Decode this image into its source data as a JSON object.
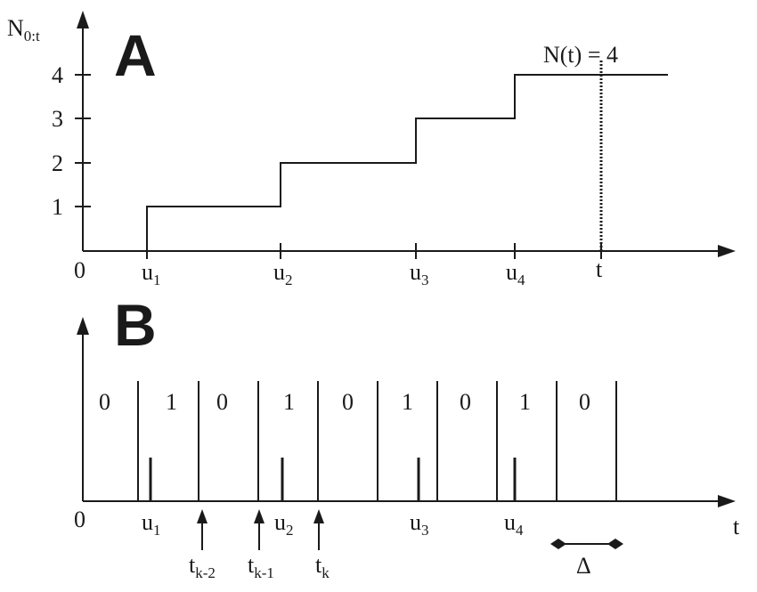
{
  "panel_a": {
    "letter": "A",
    "y_axis_label": {
      "base": "N",
      "sub": "0:t"
    },
    "origin_label": "0",
    "y_ticks": [
      "1",
      "2",
      "3",
      "4"
    ],
    "x_ticks": [
      {
        "base": "u",
        "sub": "1"
      },
      {
        "base": "u",
        "sub": "2"
      },
      {
        "base": "u",
        "sub": "3"
      },
      {
        "base": "u",
        "sub": "4"
      },
      {
        "base": "t",
        "sub": ""
      }
    ],
    "annotation": "N(t) = 4"
  },
  "panel_b": {
    "letter": "B",
    "origin_label": "0",
    "x_axis_label": "t",
    "bits": [
      "0",
      "1",
      "0",
      "1",
      "0",
      "1",
      "0",
      "1",
      "0"
    ],
    "event_labels": [
      {
        "base": "u",
        "sub": "1"
      },
      {
        "base": "u",
        "sub": "2"
      },
      {
        "base": "u",
        "sub": "3"
      },
      {
        "base": "u",
        "sub": "4"
      }
    ],
    "time_labels": [
      {
        "base": "t",
        "sub": "k-2"
      },
      {
        "base": "t",
        "sub": "k-1"
      },
      {
        "base": "t",
        "sub": "k"
      }
    ],
    "delta_label": "Δ"
  },
  "colors": {
    "ink": "#1a1a1a",
    "background": "#ffffff"
  }
}
